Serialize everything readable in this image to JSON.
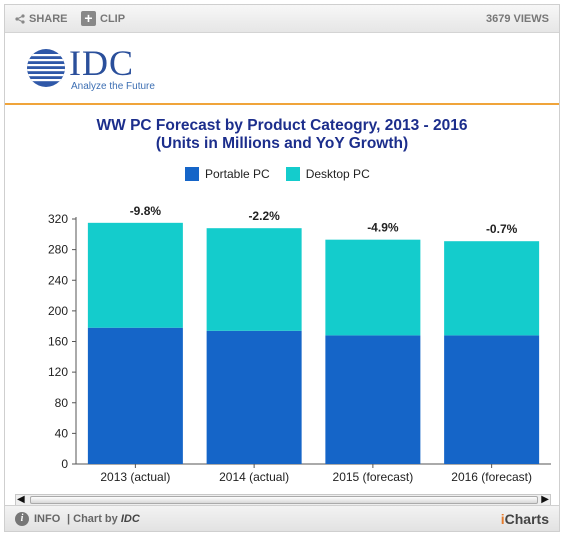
{
  "toolbar": {
    "share_label": "SHARE",
    "clip_label": "CLIP",
    "views_label": "3679 VIEWS"
  },
  "logo": {
    "name": "IDC",
    "tagline": "Analyze the Future"
  },
  "footer": {
    "info_label": "INFO",
    "chart_by_label": "| Chart by",
    "chart_by_brand": "IDC",
    "brand_prefix": "i",
    "brand_suffix": "Charts"
  },
  "colors": {
    "portable": "#1565c8",
    "desktop": "#14cccc",
    "title": "#1c2e8c",
    "accent": "#f0a43a"
  },
  "chart_data": {
    "type": "bar",
    "stacked": true,
    "title": "WW PC Forecast by Product Cateogry, 2013 - 2016",
    "subtitle": "(Units in Millions and YoY Growth)",
    "categories": [
      "2013 (actual)",
      "2014 (actual)",
      "2015 (forecast)",
      "2016 (forecast)"
    ],
    "series": [
      {
        "name": "Portable PC",
        "values": [
          178,
          174,
          168,
          168
        ]
      },
      {
        "name": "Desktop PC",
        "values": [
          137,
          134,
          125,
          123
        ]
      }
    ],
    "annotations": [
      "-9.8%",
      "-2.2%",
      "-4.9%",
      "-0.7%"
    ],
    "ylim": [
      0,
      320
    ],
    "yticks": [
      0,
      40,
      80,
      120,
      160,
      200,
      240,
      280,
      320
    ],
    "grid": false,
    "legend_position": "top"
  }
}
